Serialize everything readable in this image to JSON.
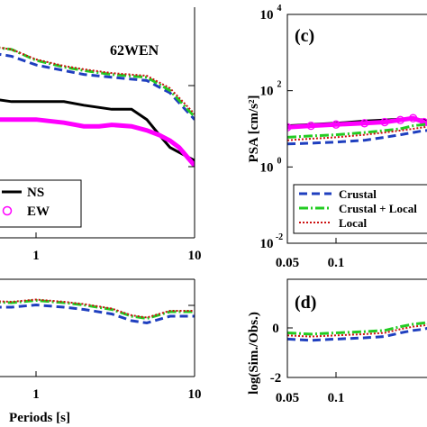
{
  "colors": {
    "NS": "#000000",
    "EW": "#ff00ff",
    "Crustal": "#1f3fbf",
    "CrustalLocal": "#22cc22",
    "Local": "#cc1111"
  },
  "chart_data": [
    {
      "panel": "left-top",
      "type": "line",
      "log_x": true,
      "log_y": true,
      "station_label": "62WEN",
      "xlim": [
        0.05,
        10
      ],
      "x_ticks": [
        "1",
        "10"
      ],
      "legend": [
        "NS",
        "EW"
      ],
      "series": [
        {
          "name": "NS",
          "x": [
            0.05,
            0.07,
            0.1,
            0.15,
            0.2,
            0.3,
            0.4,
            0.5,
            0.7,
            1,
            1.5,
            2,
            3,
            4,
            5,
            6,
            7,
            8,
            10
          ],
          "y": [
            18,
            17,
            16,
            14,
            13,
            12,
            11,
            10,
            9,
            9,
            9,
            8,
            7,
            7,
            5,
            3,
            2,
            1.7,
            1.3
          ]
        },
        {
          "name": "EW",
          "x": [
            0.05,
            0.07,
            0.1,
            0.15,
            0.2,
            0.3,
            0.4,
            0.5,
            0.7,
            1,
            1.5,
            2,
            2.5,
            3,
            4,
            5,
            6,
            7,
            8,
            10
          ],
          "y": [
            9,
            8,
            7,
            7,
            6,
            6,
            6,
            5,
            5,
            5,
            4.5,
            4,
            4,
            4.2,
            4,
            3.5,
            3,
            2.5,
            2,
            1.1
          ]
        },
        {
          "name": "Crustal",
          "x": [
            0.05,
            0.07,
            0.1,
            0.15,
            0.2,
            0.3,
            0.5,
            0.7,
            1,
            1.5,
            2,
            3,
            5,
            7,
            10
          ],
          "y": [
            60,
            58,
            55,
            55,
            50,
            48,
            45,
            40,
            30,
            25,
            22,
            20,
            18,
            12,
            5
          ]
        },
        {
          "name": "Crustal + Local",
          "x": [
            0.05,
            0.07,
            0.1,
            0.15,
            0.2,
            0.3,
            0.5,
            0.7,
            1,
            1.5,
            2,
            3,
            5,
            7,
            10
          ],
          "y": [
            80,
            75,
            70,
            70,
            65,
            60,
            55,
            50,
            35,
            28,
            25,
            22,
            20,
            13,
            5.5
          ]
        },
        {
          "name": "Local",
          "x": [
            0.05,
            0.07,
            0.1,
            0.15,
            0.2,
            0.3,
            0.5,
            0.7,
            1,
            1.5,
            2,
            3,
            5,
            7,
            10
          ],
          "y": [
            82,
            78,
            72,
            72,
            67,
            62,
            56,
            50,
            36,
            29,
            26,
            23,
            21,
            14,
            6
          ]
        }
      ]
    },
    {
      "panel": "left-bottom",
      "type": "line",
      "log_x": true,
      "xlim": [
        0.05,
        10
      ],
      "x_ticks": [
        "1",
        "10"
      ],
      "xlabel": "Periods [s]",
      "series": [
        {
          "name": "Crustal",
          "x": [
            0.05,
            0.1,
            0.2,
            0.3,
            0.5,
            0.7,
            1,
            1.5,
            2,
            3,
            4,
            5,
            7,
            10
          ],
          "y": [
            0.35,
            0.4,
            0.45,
            0.45,
            0.5,
            0.5,
            0.55,
            0.5,
            0.45,
            0.35,
            0.2,
            0.15,
            0.3,
            0.3
          ]
        },
        {
          "name": "Crustal + Local",
          "x": [
            0.05,
            0.1,
            0.2,
            0.3,
            0.5,
            0.7,
            1,
            1.5,
            2,
            3,
            4,
            5,
            7,
            10
          ],
          "y": [
            0.5,
            0.55,
            0.6,
            0.58,
            0.62,
            0.6,
            0.65,
            0.6,
            0.55,
            0.45,
            0.3,
            0.25,
            0.4,
            0.4
          ]
        },
        {
          "name": "Local",
          "x": [
            0.05,
            0.1,
            0.2,
            0.3,
            0.5,
            0.7,
            1,
            1.5,
            2,
            3,
            4,
            5,
            7,
            10
          ],
          "y": [
            0.52,
            0.57,
            0.62,
            0.6,
            0.64,
            0.62,
            0.67,
            0.62,
            0.57,
            0.47,
            0.32,
            0.27,
            0.42,
            0.42
          ]
        }
      ]
    },
    {
      "panel": "c",
      "panel_letter": "(c)",
      "type": "line",
      "log_x": true,
      "log_y": true,
      "ylabel": "PSA [cm/s²]",
      "xlim": [
        0.05,
        0.55
      ],
      "ylim": [
        0.01,
        10000
      ],
      "x_ticks": [
        "0.05",
        "0.1"
      ],
      "y_ticks": [
        {
          "base": "10",
          "exp": "-2"
        },
        {
          "base": "10",
          "exp": "0"
        },
        {
          "base": "10",
          "exp": "2"
        },
        {
          "base": "10",
          "exp": "4"
        }
      ],
      "legend": [
        "Crustal",
        "Crustal + Local",
        "Local"
      ],
      "series": [
        {
          "name": "NS",
          "x": [
            0.05,
            0.07,
            0.1,
            0.15,
            0.2,
            0.25,
            0.3,
            0.35,
            0.4,
            0.45,
            0.5,
            0.55
          ],
          "y": [
            12,
            13,
            14,
            16,
            17,
            18,
            18,
            17,
            15,
            13,
            11,
            9
          ]
        },
        {
          "name": "EW",
          "x": [
            0.05,
            0.07,
            0.1,
            0.15,
            0.2,
            0.25,
            0.3,
            0.35,
            0.4,
            0.45,
            0.5,
            0.55
          ],
          "y": [
            11,
            12,
            13,
            14,
            15,
            17,
            19,
            15,
            11,
            8,
            7,
            6.5
          ]
        },
        {
          "name": "Crustal",
          "x": [
            0.05,
            0.07,
            0.1,
            0.15,
            0.2,
            0.25,
            0.3,
            0.35,
            0.4,
            0.45,
            0.5,
            0.55
          ],
          "y": [
            4,
            4.2,
            4.5,
            5,
            6,
            7,
            8,
            9,
            9,
            9,
            9,
            9
          ]
        },
        {
          "name": "Crustal + Local",
          "x": [
            0.05,
            0.07,
            0.1,
            0.15,
            0.2,
            0.25,
            0.3,
            0.35,
            0.4,
            0.45,
            0.5,
            0.55
          ],
          "y": [
            6,
            6.5,
            7,
            8,
            9,
            10,
            12,
            13,
            14,
            15,
            15,
            16
          ]
        },
        {
          "name": "Local",
          "x": [
            0.05,
            0.07,
            0.1,
            0.15,
            0.2,
            0.25,
            0.3,
            0.35,
            0.4,
            0.45,
            0.5,
            0.55
          ],
          "y": [
            5,
            5.5,
            6,
            7,
            8,
            9,
            10,
            11,
            12,
            12,
            12,
            12
          ]
        }
      ]
    },
    {
      "panel": "d",
      "panel_letter": "(d)",
      "type": "line",
      "log_x": true,
      "ylabel": "log(Sim./Obs.)",
      "xlim": [
        0.05,
        0.55
      ],
      "ylim": [
        -2,
        2
      ],
      "x_ticks": [
        "0.05",
        "0.1"
      ],
      "y_ticks": [
        "-2",
        "0"
      ],
      "series": [
        {
          "name": "Crustal",
          "x": [
            0.05,
            0.07,
            0.1,
            0.15,
            0.2,
            0.25,
            0.3,
            0.35,
            0.4,
            0.45,
            0.5,
            0.55
          ],
          "y": [
            -0.45,
            -0.5,
            -0.45,
            -0.4,
            -0.35,
            -0.2,
            -0.1,
            -0.05,
            0.05,
            0.1,
            0.15,
            0.15
          ]
        },
        {
          "name": "Crustal + Local",
          "x": [
            0.05,
            0.07,
            0.1,
            0.15,
            0.2,
            0.25,
            0.3,
            0.35,
            0.4,
            0.45,
            0.5,
            0.55
          ],
          "y": [
            -0.2,
            -0.25,
            -0.2,
            -0.15,
            -0.1,
            0.05,
            0.15,
            0.2,
            0.3,
            0.35,
            0.35,
            0.4
          ]
        },
        {
          "name": "Local",
          "x": [
            0.05,
            0.07,
            0.1,
            0.15,
            0.2,
            0.25,
            0.3,
            0.35,
            0.4,
            0.45,
            0.5,
            0.55
          ],
          "y": [
            -0.3,
            -0.35,
            -0.3,
            -0.25,
            -0.2,
            -0.05,
            0.05,
            0.1,
            0.2,
            0.25,
            0.25,
            0.3
          ]
        }
      ]
    }
  ]
}
